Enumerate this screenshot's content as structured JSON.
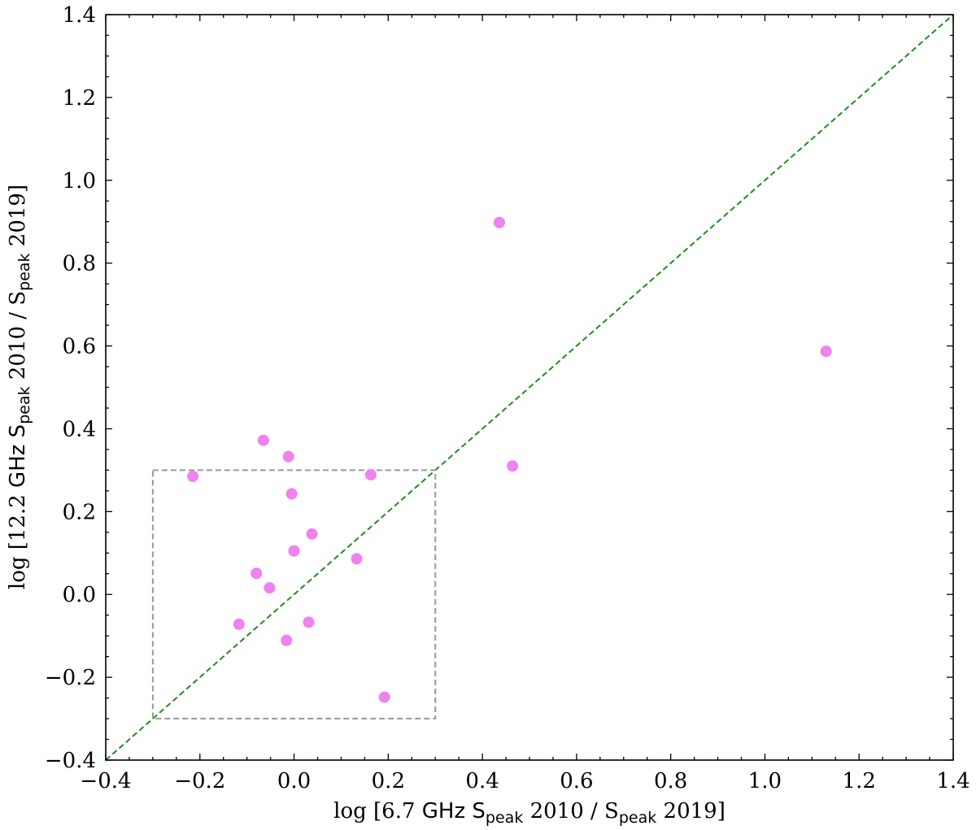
{
  "chart_data": {
    "type": "scatter",
    "title": "",
    "xlabel": {
      "prefix": "log [6.7 ",
      "ghz": "GHz",
      "s1": " S",
      "sub1": "peak",
      "mid": " 2010 / S",
      "sub2": "peak",
      "suffix": " 2019]"
    },
    "ylabel": {
      "prefix": "log [12.2 ",
      "ghz": "GHz",
      "s1": " S",
      "sub1": "peak",
      "mid": " 2010 / S",
      "sub2": "peak",
      "suffix": " 2019]"
    },
    "xlim": [
      -0.4,
      1.4
    ],
    "ylim": [
      -0.4,
      1.4
    ],
    "xticks": [
      -0.4,
      -0.2,
      0.0,
      0.2,
      0.4,
      0.6,
      0.8,
      1.0,
      1.2,
      1.4
    ],
    "yticks": [
      -0.4,
      -0.2,
      0.0,
      0.2,
      0.4,
      0.6,
      0.8,
      1.0,
      1.2,
      1.4
    ],
    "xtick_labels": [
      "−0.4",
      "−0.2",
      "0.0",
      "0.2",
      "0.4",
      "0.6",
      "0.8",
      "1.0",
      "1.2",
      "1.4"
    ],
    "ytick_labels": [
      "−0.4",
      "−0.2",
      "0.0",
      "0.2",
      "0.4",
      "0.6",
      "0.8",
      "1.0",
      "1.2",
      "1.4"
    ],
    "grid": false,
    "minor_ticks": true,
    "ticks_direction": "in",
    "ticks_on_all_sides": true,
    "series": [
      {
        "marker": "circle",
        "color": "#ee82ee",
        "points": [
          {
            "x": -0.215,
            "y": 0.285
          },
          {
            "x": -0.065,
            "y": 0.372
          },
          {
            "x": -0.012,
            "y": 0.333
          },
          {
            "x": -0.005,
            "y": 0.243
          },
          {
            "x": 0.163,
            "y": 0.289
          },
          {
            "x": 0.038,
            "y": 0.146
          },
          {
            "x": 0.0,
            "y": 0.105
          },
          {
            "x": 0.133,
            "y": 0.086
          },
          {
            "x": -0.08,
            "y": 0.051
          },
          {
            "x": -0.052,
            "y": 0.016
          },
          {
            "x": -0.117,
            "y": -0.072
          },
          {
            "x": 0.031,
            "y": -0.067
          },
          {
            "x": -0.016,
            "y": -0.111
          },
          {
            "x": 0.192,
            "y": -0.248
          },
          {
            "x": 0.436,
            "y": 0.898
          },
          {
            "x": 0.464,
            "y": 0.31
          },
          {
            "x": 1.13,
            "y": 0.587
          }
        ]
      }
    ],
    "reference_line": {
      "from": [
        -0.4,
        -0.4
      ],
      "to": [
        1.4,
        1.4
      ],
      "style": "dashed",
      "color": "#228b22"
    },
    "region_box": {
      "x": [
        -0.3,
        0.3
      ],
      "y": [
        -0.3,
        0.3
      ],
      "style": "dashed",
      "color": "#999999"
    }
  }
}
